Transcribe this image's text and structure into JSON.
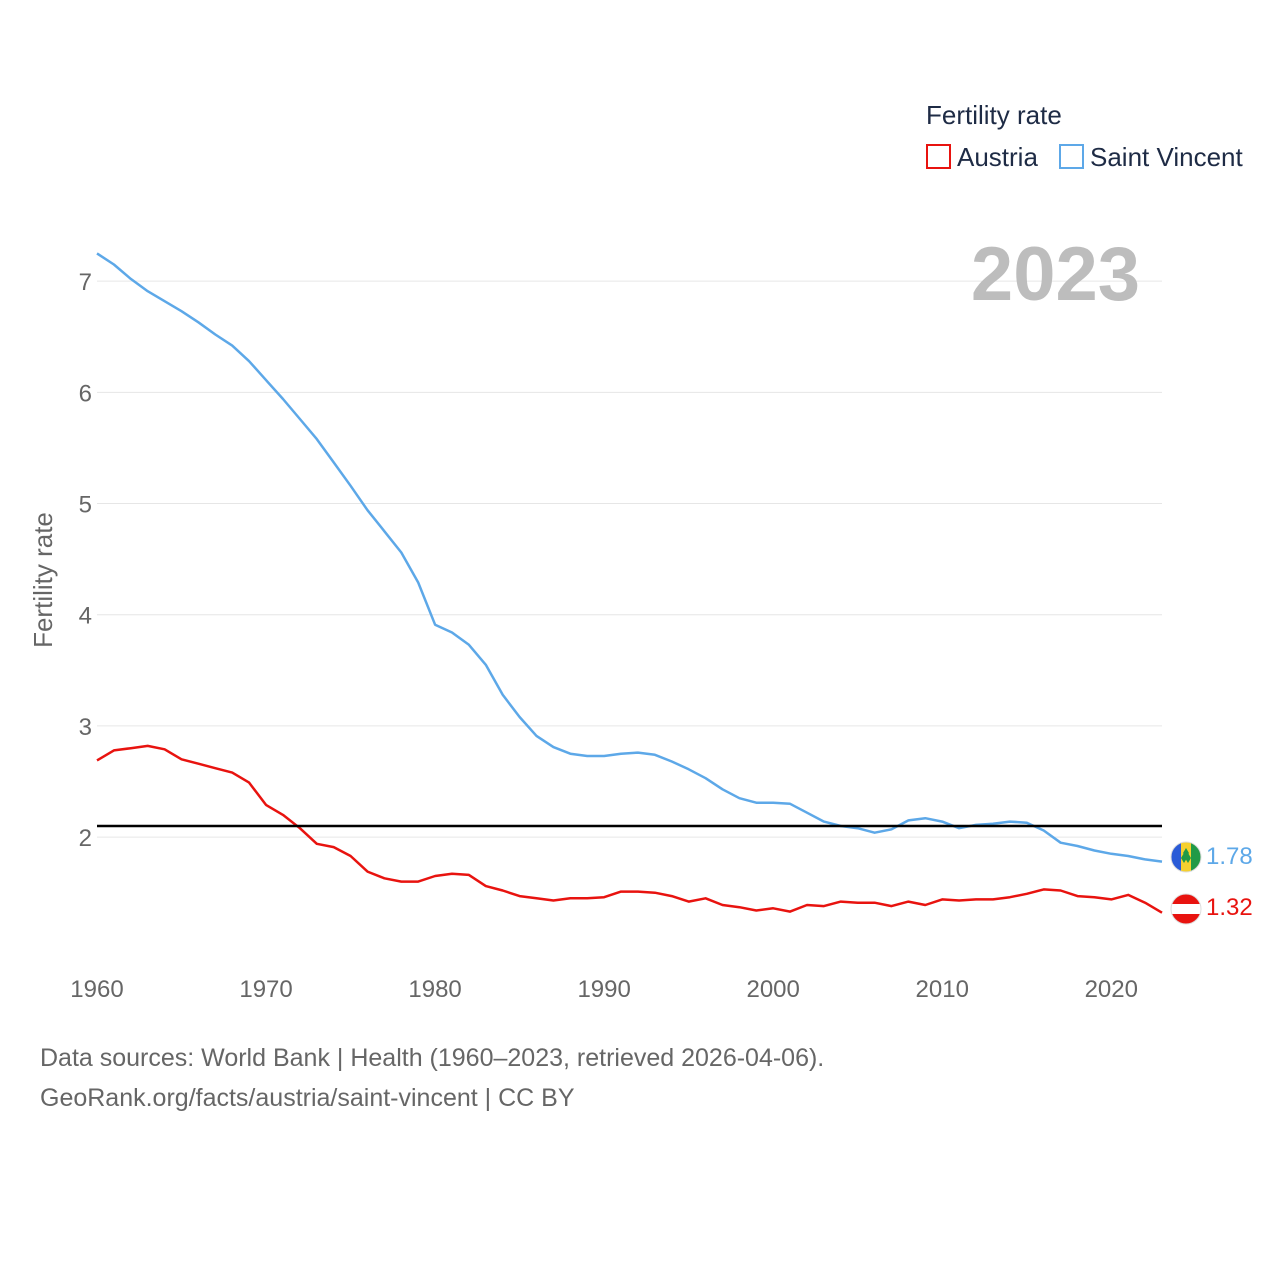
{
  "chart_data": {
    "type": "line",
    "year_label": "2023",
    "ylabel": "Fertility rate",
    "xlabel": "",
    "xlim": [
      1960,
      2023
    ],
    "ylim": [
      0.85,
      7.55
    ],
    "x_ticks": [
      "1960",
      "1970",
      "1980",
      "1990",
      "2000",
      "2010",
      "2020"
    ],
    "y_ticks": [
      "2",
      "3",
      "4",
      "5",
      "6",
      "7"
    ],
    "reference_line": 2.1,
    "legend": {
      "title": "Fertility rate",
      "position": "top-right"
    },
    "series": [
      {
        "name": "Austria",
        "color": "#e8130f",
        "flag": "austria-flag",
        "end_value_label": "1.32",
        "values": [
          2.69,
          2.78,
          2.8,
          2.82,
          2.79,
          2.7,
          2.66,
          2.62,
          2.58,
          2.49,
          2.29,
          2.2,
          2.08,
          1.94,
          1.91,
          1.83,
          1.69,
          1.63,
          1.6,
          1.6,
          1.65,
          1.67,
          1.66,
          1.56,
          1.52,
          1.47,
          1.45,
          1.43,
          1.45,
          1.45,
          1.46,
          1.51,
          1.51,
          1.5,
          1.47,
          1.42,
          1.45,
          1.39,
          1.37,
          1.34,
          1.36,
          1.33,
          1.39,
          1.38,
          1.42,
          1.41,
          1.41,
          1.38,
          1.42,
          1.39,
          1.44,
          1.43,
          1.44,
          1.44,
          1.46,
          1.49,
          1.53,
          1.52,
          1.47,
          1.46,
          1.44,
          1.48,
          1.41,
          1.32
        ]
      },
      {
        "name": "Saint Vincent",
        "color": "#5da8e8",
        "flag": "saint-vincent-flag",
        "end_value_label": "1.78",
        "values": [
          7.25,
          7.15,
          7.02,
          6.91,
          6.82,
          6.73,
          6.63,
          6.52,
          6.42,
          6.28,
          6.11,
          5.94,
          5.76,
          5.58,
          5.37,
          5.16,
          4.94,
          4.75,
          4.56,
          4.29,
          3.91,
          3.84,
          3.73,
          3.55,
          3.28,
          3.08,
          2.91,
          2.81,
          2.75,
          2.73,
          2.73,
          2.75,
          2.76,
          2.74,
          2.68,
          2.61,
          2.53,
          2.43,
          2.35,
          2.31,
          2.31,
          2.3,
          2.22,
          2.14,
          2.1,
          2.08,
          2.04,
          2.07,
          2.15,
          2.17,
          2.14,
          2.08,
          2.11,
          2.12,
          2.14,
          2.13,
          2.06,
          1.95,
          1.92,
          1.88,
          1.85,
          1.83,
          1.8,
          1.78
        ]
      }
    ]
  },
  "footer": {
    "line1": "Data sources: World Bank | Health (1960–2023, retrieved 2026-04-06).",
    "line2": "GeoRank.org/facts/austria/saint-vincent | CC BY"
  }
}
